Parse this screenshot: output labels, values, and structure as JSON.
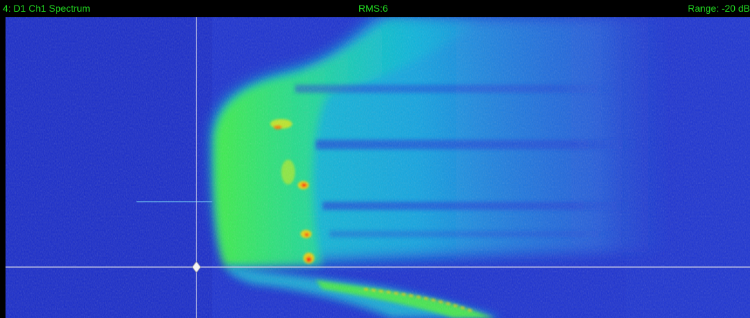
{
  "status_bar": {
    "title": "4: D1 Ch1 Spectrum",
    "rms": "RMS:6",
    "range": "Range: -20 dB"
  },
  "colors": {
    "background": "#000000",
    "status_text": "#22dd22",
    "cursor": "#d8d8e8",
    "colormap_low": "#1428d2",
    "colormap_mid": "#00c8e8",
    "colormap_high": "#33ee44",
    "colormap_peak": "#ff2a00"
  },
  "icons": {
    "cursor_marker": "diamond-marker-icon"
  }
}
